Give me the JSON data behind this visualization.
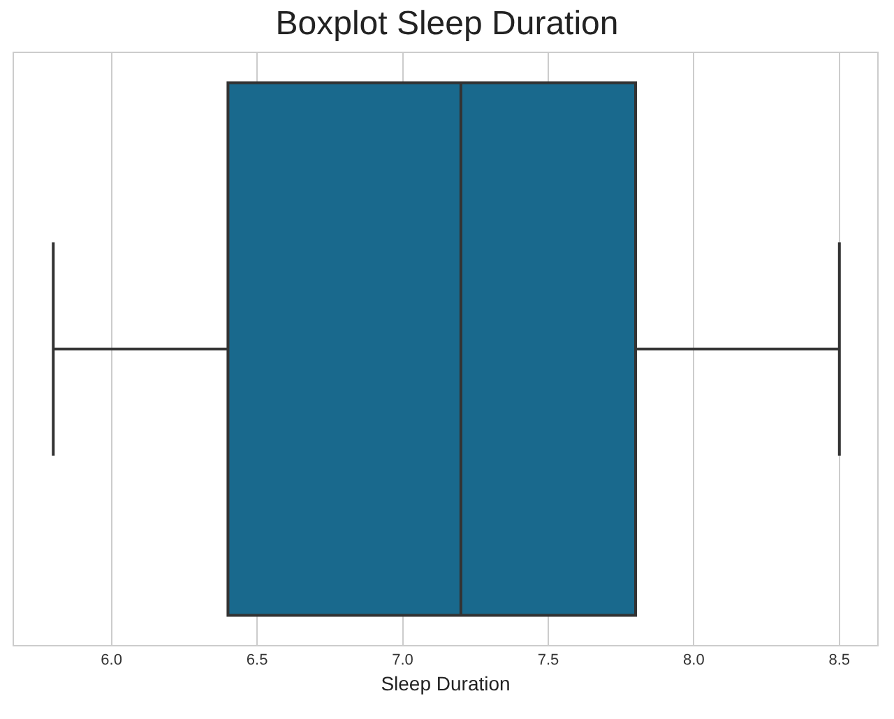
{
  "chart_data": {
    "type": "box",
    "title": "Boxplot Sleep Duration",
    "xlabel": "Sleep Duration",
    "categories": [
      null
    ],
    "orientation": "horizontal",
    "color": "#19698d",
    "boxes": [
      {
        "low": 5.8,
        "q1": 6.4,
        "median": 7.2,
        "q3": 7.8,
        "high": 8.5
      }
    ],
    "xlim": [
      5.665,
      8.63
    ],
    "xticks": [
      {
        "value": 6,
        "label": "6.0"
      },
      {
        "value": 6.5,
        "label": "6.5"
      },
      {
        "value": 7,
        "label": "7.0"
      },
      {
        "value": 7.5,
        "label": "7.5"
      },
      {
        "value": 8,
        "label": "8.0"
      },
      {
        "value": 8.5,
        "label": "8.5"
      }
    ],
    "grid": "x",
    "tick_labels": "x"
  }
}
